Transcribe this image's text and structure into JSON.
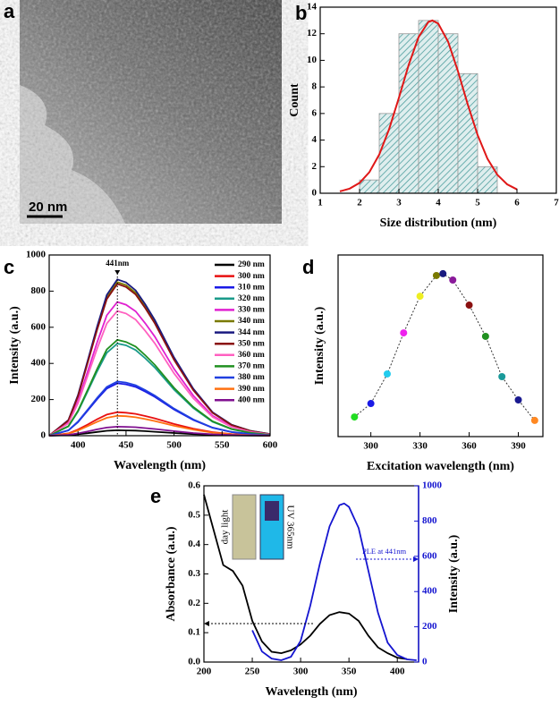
{
  "image_panel": {
    "label": "a",
    "scale_bar": "20 nm"
  },
  "chart_data": [
    {
      "panel": "b",
      "type": "histogram",
      "xlabel": "Size distribution (nm)",
      "ylabel": "Count",
      "bins": [
        2,
        2.5,
        3,
        3.5,
        4,
        4.5,
        5,
        5.5
      ],
      "counts": [
        1,
        6,
        12,
        13,
        12,
        9,
        2
      ],
      "color": "#6fb3b3",
      "series": [
        {
          "color": "#e01818",
          "x": [
            1.5,
            1.75,
            2,
            2.25,
            2.5,
            2.75,
            3,
            3.25,
            3.5,
            3.75,
            3.85,
            4,
            4.25,
            4.5,
            4.75,
            5,
            5.25,
            5.5,
            5.75,
            6
          ],
          "values": [
            0.14,
            0.35,
            0.78,
            1.59,
            2.91,
            4.81,
            7.18,
            9.67,
            11.75,
            12.89,
            13,
            12.76,
            11.4,
            9.19,
            6.68,
            4.38,
            2.6,
            1.39,
            0.67,
            0.29
          ]
        }
      ],
      "xlim": [
        1,
        7
      ],
      "xticks": [
        1,
        2,
        3,
        4,
        5,
        6,
        7
      ],
      "ylim": [
        0,
        14
      ],
      "yticks": [
        0,
        2,
        4,
        6,
        8,
        10,
        12,
        14
      ]
    },
    {
      "panel": "c",
      "type": "line",
      "xlabel": "Wavelength (nm)",
      "ylabel": "Intensity (a.u.)",
      "x": [
        370,
        390,
        400,
        410,
        420,
        430,
        441,
        450,
        460,
        470,
        480,
        500,
        520,
        540,
        560,
        580,
        600
      ],
      "series": [
        {
          "name": "290 nm",
          "color": "#000000",
          "values": [
            0,
            3,
            8,
            14,
            21,
            27,
            30,
            29,
            28,
            25,
            22,
            15,
            9,
            5,
            2,
            1,
            0
          ]
        },
        {
          "name": "300 nm",
          "color": "#e81010",
          "values": [
            0,
            13,
            34,
            62,
            91,
            117,
            130,
            127,
            121,
            109,
            96,
            65,
            39,
            20,
            9,
            4,
            1
          ]
        },
        {
          "name": "310 nm",
          "color": "#1a1ae6",
          "values": [
            0,
            29,
            75,
            139,
            203,
            261,
            290,
            284,
            270,
            244,
            215,
            145,
            87,
            44,
            20,
            9,
            3
          ]
        },
        {
          "name": "320 nm",
          "color": "#1a9a8a",
          "values": [
            0,
            51,
            133,
            245,
            357,
            459,
            510,
            500,
            474,
            428,
            377,
            255,
            153,
            77,
            36,
            15,
            5
          ]
        },
        {
          "name": "330 nm",
          "color": "#e020d0",
          "values": [
            0,
            74,
            192,
            355,
            518,
            666,
            740,
            725,
            688,
            622,
            548,
            370,
            222,
            111,
            52,
            22,
            7
          ]
        },
        {
          "name": "340 nm",
          "color": "#7a7a00",
          "values": [
            0,
            85,
            221,
            408,
            595,
            765,
            850,
            833,
            791,
            714,
            629,
            425,
            255,
            128,
            60,
            26,
            9
          ]
        },
        {
          "name": "344 nm",
          "color": "#1a1a80",
          "values": [
            0,
            87,
            225,
            415,
            606,
            779,
            865,
            848,
            804,
            727,
            640,
            433,
            260,
            130,
            61,
            26,
            9
          ]
        },
        {
          "name": "350 nm",
          "color": "#8a1010",
          "values": [
            0,
            84,
            218,
            403,
            588,
            756,
            840,
            823,
            781,
            706,
            622,
            420,
            252,
            126,
            59,
            25,
            8
          ]
        },
        {
          "name": "360 nm",
          "color": "#ff60c0",
          "values": [
            0,
            69,
            179,
            331,
            483,
            621,
            690,
            676,
            642,
            580,
            511,
            345,
            207,
            104,
            48,
            21,
            7
          ]
        },
        {
          "name": "370 nm",
          "color": "#209020",
          "values": [
            0,
            53,
            138,
            254,
            371,
            477,
            530,
            519,
            493,
            445,
            392,
            265,
            159,
            80,
            37,
            16,
            5
          ]
        },
        {
          "name": "380 nm",
          "color": "#2040e0",
          "values": [
            0,
            30,
            78,
            144,
            210,
            270,
            300,
            294,
            279,
            252,
            222,
            150,
            90,
            45,
            21,
            9,
            3
          ]
        },
        {
          "name": "390 nm",
          "color": "#ff7010",
          "values": [
            0,
            11,
            29,
            53,
            77,
            99,
            110,
            108,
            102,
            92,
            81,
            55,
            33,
            17,
            8,
            3,
            1
          ]
        },
        {
          "name": "400 nm",
          "color": "#801090",
          "values": [
            0,
            5,
            13,
            24,
            35,
            45,
            50,
            49,
            47,
            42,
            37,
            25,
            15,
            8,
            4,
            2,
            1
          ]
        }
      ],
      "annotations": [
        {
          "text": "441nm",
          "x": 441
        }
      ],
      "legend": "upper right",
      "xlim": [
        370,
        600
      ],
      "xticks": [
        400,
        450,
        500,
        550,
        600
      ],
      "ylim": [
        0,
        1000
      ],
      "yticks": [
        0,
        200,
        400,
        600,
        800,
        1000
      ]
    },
    {
      "panel": "d",
      "type": "scatter",
      "xlabel": "Excitation wavelength (nm)",
      "ylabel": "Intensity (a.u.)",
      "x": [
        290,
        300,
        310,
        320,
        330,
        340,
        344,
        350,
        360,
        370,
        380,
        390,
        400
      ],
      "values": [
        108,
        182,
        345,
        571,
        773,
        887,
        897,
        862,
        724,
        552,
        330,
        202,
        89
      ],
      "colors": [
        "#22dd22",
        "#1a1ae6",
        "#22ccee",
        "#ee22ee",
        "#eeee22",
        "#7a7a00",
        "#1a1a80",
        "#8a1a9a",
        "#8a1010",
        "#209020",
        "#1a9a9a",
        "#1a1a90",
        "#ff8822"
      ],
      "xlim": [
        280,
        405
      ],
      "xticks": [
        300,
        330,
        360,
        390
      ],
      "ylim": [
        0,
        1000
      ]
    },
    {
      "panel": "e",
      "type": "line",
      "xlabel": "Wavelength (nm)",
      "ylabel": "Absorbance (a.u.)",
      "y2label": "Intensity (a.u.)",
      "series": [
        {
          "color": "#000000",
          "x": [
            200,
            210,
            220,
            230,
            240,
            250,
            260,
            270,
            280,
            290,
            300,
            310,
            320,
            330,
            340,
            350,
            360,
            370,
            380,
            390,
            400,
            410
          ],
          "values": [
            0.57,
            0.45,
            0.33,
            0.31,
            0.26,
            0.14,
            0.07,
            0.035,
            0.03,
            0.04,
            0.06,
            0.09,
            0.13,
            0.16,
            0.17,
            0.165,
            0.14,
            0.09,
            0.05,
            0.03,
            0.015,
            0.01
          ]
        },
        {
          "color": "#1515d0",
          "axis": "y2",
          "x": [
            250,
            260,
            270,
            280,
            290,
            300,
            310,
            320,
            330,
            340,
            345,
            350,
            360,
            370,
            380,
            390,
            400,
            410,
            420
          ],
          "values": [
            180,
            60,
            20,
            10,
            30,
            120,
            320,
            560,
            770,
            890,
            900,
            880,
            760,
            520,
            280,
            110,
            40,
            15,
            10
          ]
        }
      ],
      "annotations": [
        {
          "text": "PLE at 441nm"
        },
        {
          "text": "day light"
        },
        {
          "text": "UV 365nm"
        }
      ],
      "xlim": [
        200,
        422
      ],
      "xticks": [
        200,
        250,
        300,
        350,
        400
      ],
      "ylim": [
        0,
        0.6
      ],
      "yticks": [
        {
          "value": 0,
          "label": "0.0"
        },
        0.1,
        0.2,
        0.3,
        0.4,
        0.5,
        0.6
      ],
      "y2lim": [
        0,
        1000
      ],
      "y2ticks": [
        0,
        200,
        400,
        600,
        800,
        1000
      ]
    }
  ]
}
